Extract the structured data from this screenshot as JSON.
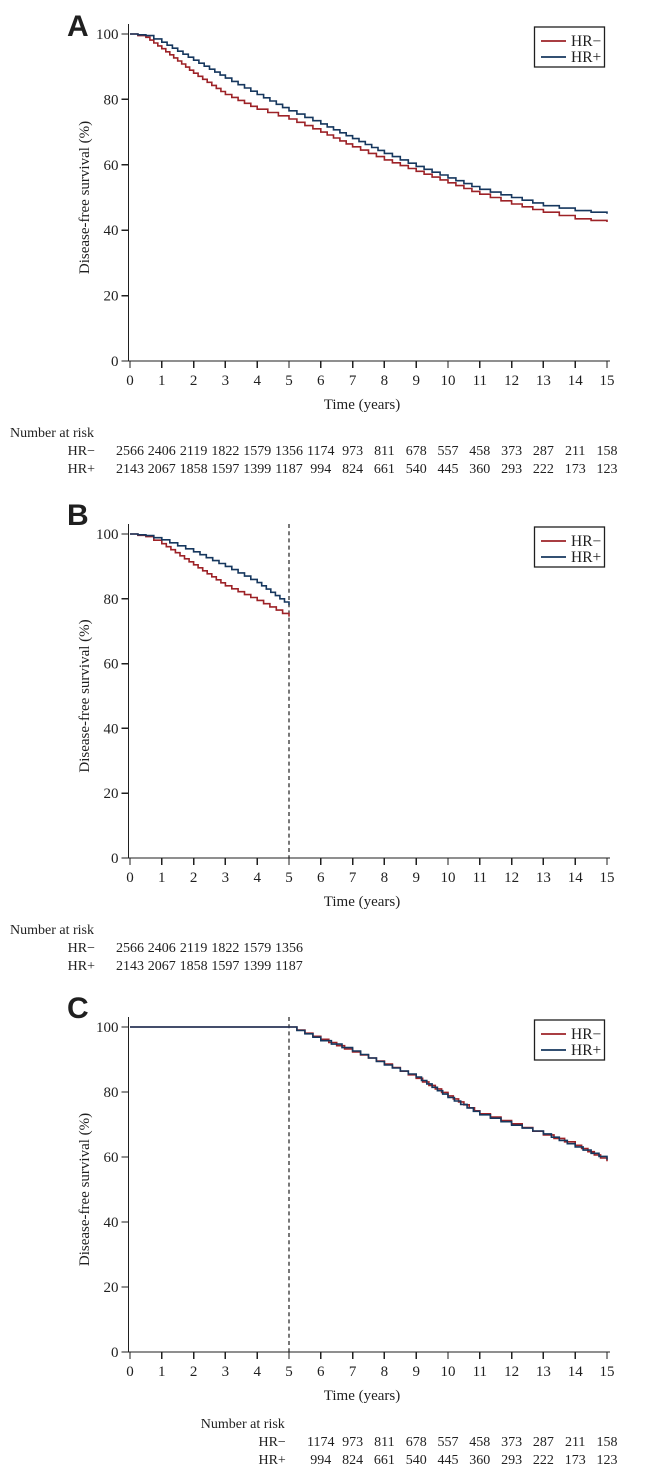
{
  "figure": {
    "background": "#ffffff",
    "text_color": "#1f1f1f",
    "axis_color": "#1f1f1f",
    "series_colors": {
      "hr_minus": "#9d2227",
      "hr_plus": "#16375e"
    }
  },
  "chart_data": [
    {
      "type": "line",
      "panel": "A",
      "xlabel": "Time (years)",
      "ylabel": "Disease-free survival (%)",
      "xlim": [
        0,
        15
      ],
      "ylim": [
        0,
        100
      ],
      "x_ticks": [
        0,
        1,
        2,
        3,
        4,
        5,
        6,
        7,
        8,
        9,
        10,
        11,
        12,
        13,
        14,
        15
      ],
      "y_ticks": [
        0,
        20,
        40,
        60,
        80,
        100
      ],
      "grid": false,
      "legend_position": "top-right",
      "legend": [
        {
          "name": "HR−",
          "color": "#9d2227"
        },
        {
          "name": "HR+",
          "color": "#16375e"
        }
      ],
      "dashed_vline_x": null,
      "series": [
        {
          "name": "HR−",
          "color": "#9d2227",
          "x": [
            0,
            0.5,
            1,
            2,
            3,
            4,
            5,
            6,
            7,
            8,
            9,
            10,
            11,
            12,
            13,
            14,
            15
          ],
          "values": [
            100,
            99,
            95.5,
            88,
            81.5,
            77,
            74,
            70,
            65.5,
            61.5,
            58,
            54.5,
            51,
            48,
            45.5,
            43.5,
            42.5
          ]
        },
        {
          "name": "HR+",
          "color": "#16375e",
          "x": [
            0,
            0.5,
            1,
            2,
            3,
            4,
            5,
            6,
            7,
            8,
            9,
            10,
            11,
            12,
            13,
            14,
            15
          ],
          "values": [
            100,
            99.5,
            97.5,
            92,
            86.5,
            81.5,
            76.5,
            72.5,
            68,
            63.5,
            59.5,
            56,
            52.5,
            50,
            47.5,
            46,
            45
          ]
        }
      ],
      "number_at_risk": {
        "title": "Number at risk",
        "rows": [
          {
            "label": "HR−",
            "times": [
              0,
              1,
              2,
              3,
              4,
              5,
              6,
              7,
              8,
              9,
              10,
              11,
              12,
              13,
              14,
              15
            ],
            "counts": [
              2566,
              2406,
              2119,
              1822,
              1579,
              1356,
              1174,
              973,
              811,
              678,
              557,
              458,
              373,
              287,
              211,
              158
            ]
          },
          {
            "label": "HR+",
            "times": [
              0,
              1,
              2,
              3,
              4,
              5,
              6,
              7,
              8,
              9,
              10,
              11,
              12,
              13,
              14,
              15
            ],
            "counts": [
              2143,
              2067,
              1858,
              1597,
              1399,
              1187,
              994,
              824,
              661,
              540,
              445,
              360,
              293,
              222,
              173,
              123
            ]
          }
        ]
      }
    },
    {
      "type": "line",
      "panel": "B",
      "xlabel": "Time (years)",
      "ylabel": "Disease-free survival (%)",
      "xlim": [
        0,
        15
      ],
      "ylim": [
        0,
        100
      ],
      "x_ticks": [
        0,
        1,
        2,
        3,
        4,
        5,
        6,
        7,
        8,
        9,
        10,
        11,
        12,
        13,
        14,
        15
      ],
      "y_ticks": [
        0,
        20,
        40,
        60,
        80,
        100
      ],
      "grid": false,
      "legend_position": "top-right",
      "legend": [
        {
          "name": "HR−",
          "color": "#9d2227"
        },
        {
          "name": "HR+",
          "color": "#16375e"
        }
      ],
      "dashed_vline_x": 5,
      "series": [
        {
          "name": "HR−",
          "color": "#9d2227",
          "x": [
            0,
            0.5,
            1,
            2,
            3,
            4,
            5
          ],
          "values": [
            100,
            99.2,
            97,
            90.5,
            84,
            79.5,
            74.5
          ]
        },
        {
          "name": "HR+",
          "color": "#16375e",
          "x": [
            0,
            0.5,
            1,
            2,
            3,
            4,
            5
          ],
          "values": [
            100,
            99.5,
            98.2,
            94.5,
            90,
            85,
            78
          ]
        }
      ],
      "number_at_risk": {
        "title": "Number at risk",
        "rows": [
          {
            "label": "HR−",
            "times": [
              0,
              1,
              2,
              3,
              4,
              5
            ],
            "counts": [
              2566,
              2406,
              2119,
              1822,
              1579,
              1356
            ]
          },
          {
            "label": "HR+",
            "times": [
              0,
              1,
              2,
              3,
              4,
              5
            ],
            "counts": [
              2143,
              2067,
              1858,
              1597,
              1399,
              1187
            ]
          }
        ]
      }
    },
    {
      "type": "line",
      "panel": "C",
      "xlabel": "Time (years)",
      "ylabel": "Disease-free survival (%)",
      "xlim": [
        0,
        15
      ],
      "ylim": [
        0,
        100
      ],
      "x_ticks": [
        0,
        1,
        2,
        3,
        4,
        5,
        6,
        7,
        8,
        9,
        10,
        11,
        12,
        13,
        14,
        15
      ],
      "y_ticks": [
        0,
        20,
        40,
        60,
        80,
        100
      ],
      "grid": false,
      "legend_position": "top-right",
      "legend": [
        {
          "name": "HR−",
          "color": "#9d2227"
        },
        {
          "name": "HR+",
          "color": "#16375e"
        }
      ],
      "dashed_vline_x": 5,
      "series": [
        {
          "name": "HR−",
          "color": "#9d2227",
          "x": [
            0,
            5,
            6,
            7,
            8,
            9,
            10,
            11,
            12,
            13,
            14,
            15
          ],
          "values": [
            100,
            100,
            96.2,
            92.3,
            88.6,
            84.2,
            78.8,
            73.3,
            70.2,
            66.8,
            63.6,
            58.7
          ]
        },
        {
          "name": "HR+",
          "color": "#16375e",
          "x": [
            0,
            5,
            6,
            7,
            8,
            9,
            10,
            11,
            12,
            13,
            14,
            15
          ],
          "values": [
            100,
            100,
            95.8,
            92.6,
            88.3,
            84.6,
            78.3,
            73,
            69.8,
            67.1,
            63.1,
            59.2
          ]
        }
      ],
      "number_at_risk": {
        "title": "Number at risk",
        "rows": [
          {
            "label": "HR−",
            "times": [
              6,
              7,
              8,
              9,
              10,
              11,
              12,
              13,
              14,
              15
            ],
            "counts": [
              1174,
              973,
              811,
              678,
              557,
              458,
              373,
              287,
              211,
              158
            ]
          },
          {
            "label": "HR+",
            "times": [
              6,
              7,
              8,
              9,
              10,
              11,
              12,
              13,
              14,
              15
            ],
            "counts": [
              994,
              824,
              661,
              540,
              445,
              360,
              293,
              222,
              173,
              123
            ]
          }
        ]
      }
    }
  ]
}
